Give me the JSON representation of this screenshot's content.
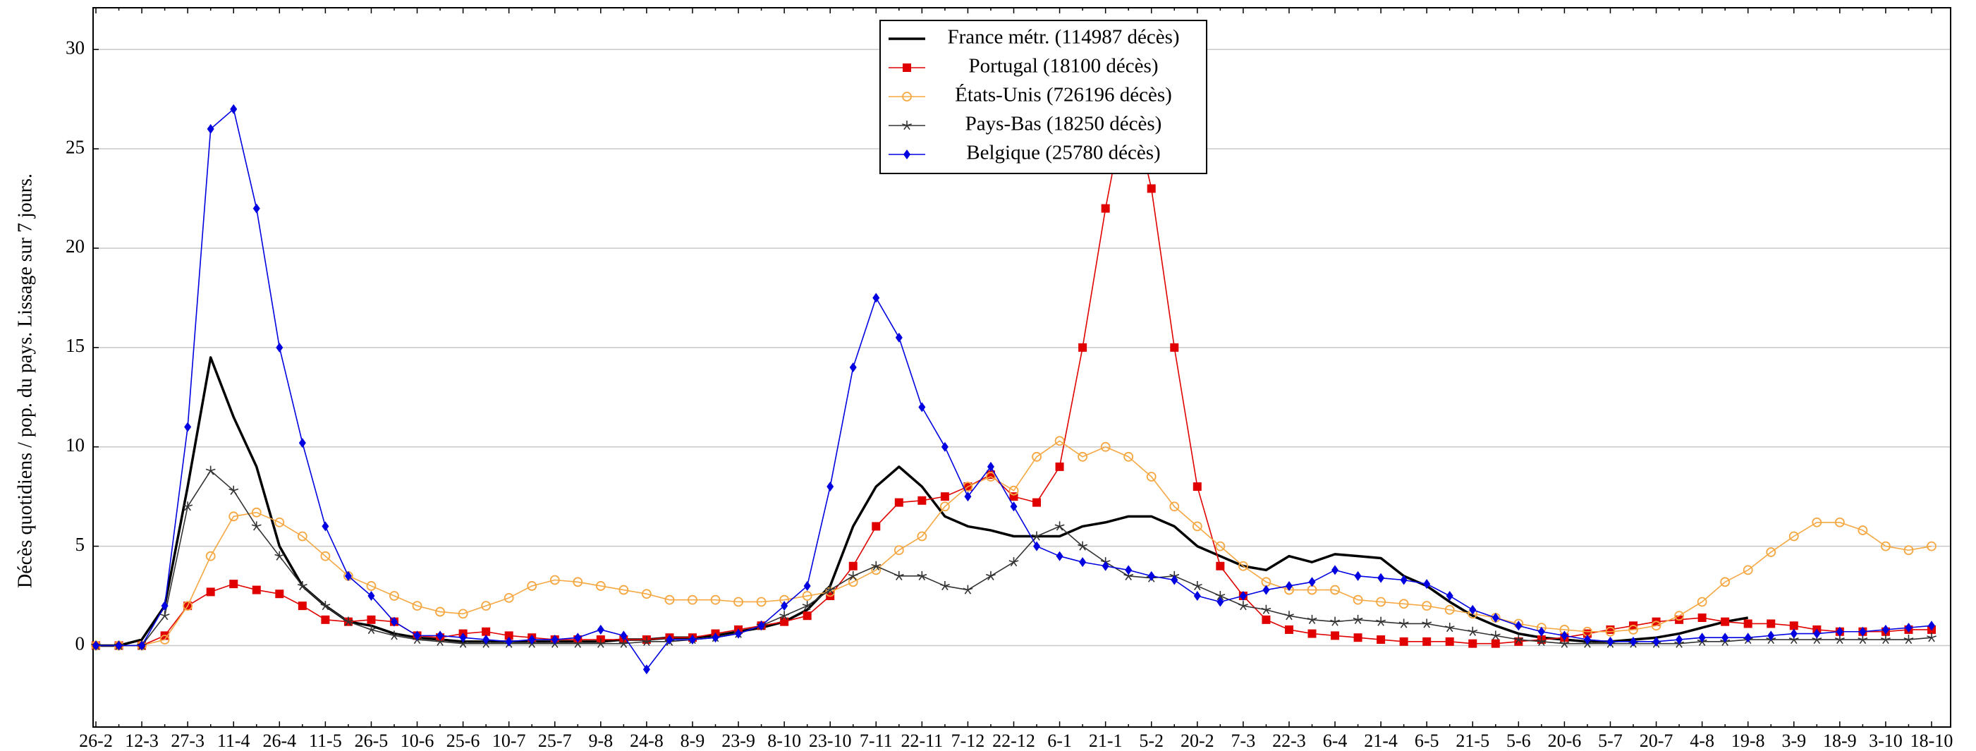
{
  "chart_data": {
    "type": "line",
    "ylabel": "Décès quotidiens / pop. du pays. Lissage sur 7 jours.",
    "categories": [
      "26-2",
      null,
      "12-3",
      null,
      "27-3",
      null,
      "11-4",
      null,
      "26-4",
      null,
      "11-5",
      null,
      "26-5",
      null,
      "10-6",
      null,
      "25-6",
      null,
      "10-7",
      null,
      "25-7",
      null,
      "9-8",
      null,
      "24-8",
      null,
      "8-9",
      null,
      "23-9",
      null,
      "8-10",
      null,
      "23-10",
      null,
      "7-11",
      null,
      "22-11",
      null,
      "7-12",
      null,
      "22-12",
      null,
      "6-1",
      null,
      "21-1",
      null,
      "5-2",
      null,
      "20-2",
      null,
      "7-3",
      null,
      "22-3",
      null,
      "6-4",
      null,
      "21-4",
      null,
      "6-5",
      null,
      "21-5",
      null,
      "5-6",
      null,
      "20-6",
      null,
      "5-7",
      null,
      "20-7",
      null,
      "4-8",
      null,
      "19-8",
      null,
      "3-9",
      null,
      "18-9",
      null,
      "3-10",
      null,
      "18-10"
    ],
    "ylim": [
      -4.1,
      32.1
    ],
    "yticks": [
      0,
      5,
      10,
      15,
      20,
      25,
      30
    ],
    "grid": true,
    "legend_position": "top",
    "series": [
      {
        "name": "France métr. (114987 décès)",
        "color": "#000000",
        "marker": "none",
        "values": [
          0,
          0,
          0.3,
          2,
          8,
          14.5,
          11.5,
          9,
          5,
          3,
          2,
          1.2,
          1,
          0.6,
          0.4,
          0.3,
          0.2,
          0.2,
          0.2,
          0.2,
          0.2,
          0.2,
          0.2,
          0.3,
          0.3,
          0.4,
          0.4,
          0.5,
          0.7,
          0.9,
          1.2,
          1.8,
          3,
          6,
          8,
          9,
          8,
          6.5,
          6,
          5.8,
          5.5,
          5.5,
          5.5,
          6,
          6.2,
          6.5,
          6.5,
          6,
          5,
          4.5,
          4,
          3.8,
          4.5,
          4.2,
          4.6,
          4.5,
          4.4,
          3.5,
          3,
          2.2,
          1.5,
          1,
          0.6,
          0.4,
          0.3,
          0.2,
          0.2,
          0.3,
          0.4,
          0.6,
          0.9,
          1.2,
          1.4,
          null,
          null,
          null,
          null,
          null,
          null,
          null,
          null
        ]
      },
      {
        "name": "Portugal (18100 décès)",
        "color": "#e00000",
        "marker": "square",
        "values": [
          0,
          0,
          0,
          0.5,
          2,
          2.7,
          3.1,
          2.8,
          2.6,
          2,
          1.3,
          1.2,
          1.3,
          1.2,
          0.5,
          0.4,
          0.6,
          0.7,
          0.5,
          0.4,
          0.3,
          0.3,
          0.3,
          0.3,
          0.3,
          0.4,
          0.4,
          0.6,
          0.8,
          1,
          1.2,
          1.5,
          2.5,
          4,
          6,
          7.2,
          7.3,
          7.5,
          8,
          8.6,
          7.5,
          7.2,
          9,
          15,
          22,
          28,
          23,
          15,
          8,
          4,
          2.5,
          1.3,
          0.8,
          0.6,
          0.5,
          0.4,
          0.3,
          0.2,
          0.2,
          0.2,
          0.1,
          0.1,
          0.2,
          0.3,
          0.4,
          0.6,
          0.8,
          1,
          1.2,
          1.3,
          1.4,
          1.2,
          1.1,
          1.1,
          1,
          0.8,
          0.7,
          0.7,
          0.7,
          0.8,
          0.8
        ]
      },
      {
        "name": "États-Unis (726196 décès)",
        "color": "#f5a742",
        "marker": "circle",
        "values": [
          0,
          0,
          0,
          0.3,
          2,
          4.5,
          6.5,
          6.7,
          6.2,
          5.5,
          4.5,
          3.5,
          3,
          2.5,
          2,
          1.7,
          1.6,
          2,
          2.4,
          3,
          3.3,
          3.2,
          3,
          2.8,
          2.6,
          2.3,
          2.3,
          2.3,
          2.2,
          2.2,
          2.3,
          2.5,
          2.7,
          3.2,
          3.8,
          4.8,
          5.5,
          7,
          8,
          8.5,
          7.8,
          9.5,
          10.3,
          9.5,
          10,
          9.5,
          8.5,
          7,
          6,
          5,
          4,
          3.2,
          2.8,
          2.8,
          2.8,
          2.3,
          2.2,
          2.1,
          2,
          1.8,
          1.6,
          1.4,
          1.1,
          0.9,
          0.8,
          0.7,
          0.7,
          0.8,
          1,
          1.5,
          2.2,
          3.2,
          3.8,
          4.7,
          5.5,
          6.2,
          6.2,
          5.8,
          5,
          4.8,
          5
        ]
      },
      {
        "name": "Pays-Bas (18250 décès)",
        "color": "#333333",
        "marker": "star",
        "values": [
          0,
          0,
          0,
          1.5,
          7,
          8.8,
          7.8,
          6,
          4.5,
          3,
          2,
          1.2,
          0.8,
          0.5,
          0.3,
          0.2,
          0.1,
          0.1,
          0.1,
          0.1,
          0.1,
          0.1,
          0.1,
          0.1,
          0.2,
          0.2,
          0.3,
          0.4,
          0.6,
          1,
          1.5,
          2,
          2.8,
          3.5,
          4,
          3.5,
          3.5,
          3,
          2.8,
          3.5,
          4.2,
          5.5,
          6,
          5,
          4.2,
          3.5,
          3.4,
          3.5,
          3,
          2.5,
          2,
          1.8,
          1.5,
          1.3,
          1.2,
          1.3,
          1.2,
          1.1,
          1.1,
          0.9,
          0.7,
          0.5,
          0.3,
          0.2,
          0.1,
          0.1,
          0.1,
          0.1,
          0.1,
          0.1,
          0.2,
          0.2,
          0.3,
          0.3,
          0.3,
          0.3,
          0.3,
          0.3,
          0.3,
          0.3,
          0.4
        ]
      },
      {
        "name": "Belgique (25780 décès)",
        "color": "#0000e0",
        "marker": "diamond",
        "values": [
          0,
          0,
          0,
          2,
          11,
          26,
          27,
          22,
          15,
          10.2,
          6,
          3.5,
          2.5,
          1.2,
          0.5,
          0.5,
          0.4,
          0.3,
          0.2,
          0.3,
          0.3,
          0.4,
          0.8,
          0.5,
          -1.2,
          0.3,
          0.3,
          0.4,
          0.6,
          1,
          2,
          3,
          8,
          14,
          17.5,
          15.5,
          12,
          10,
          7.5,
          9,
          7,
          5,
          4.5,
          4.2,
          4,
          3.8,
          3.5,
          3.3,
          2.5,
          2.2,
          2.5,
          2.8,
          3,
          3.2,
          3.8,
          3.5,
          3.4,
          3.3,
          3.1,
          2.5,
          1.8,
          1.4,
          1,
          0.7,
          0.5,
          0.3,
          0.2,
          0.2,
          0.2,
          0.3,
          0.4,
          0.4,
          0.4,
          0.5,
          0.6,
          0.6,
          0.7,
          0.7,
          0.8,
          0.9,
          1
        ]
      }
    ]
  }
}
